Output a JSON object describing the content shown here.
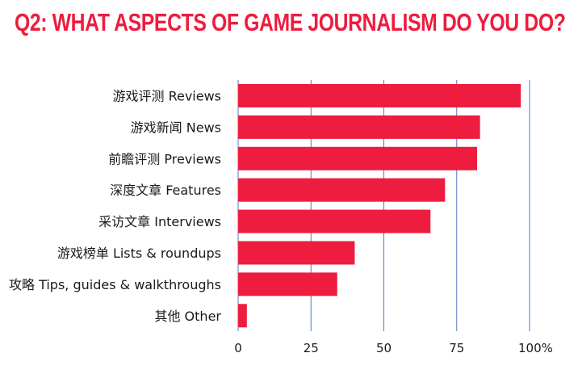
{
  "title": "Q2:  WHAT ASPECTS OF GAME JOURNALISM DO YOU DO?",
  "colors": {
    "title": "#ee1c3e",
    "bar": "#ee1c3e",
    "grid": "#4a7fbf"
  },
  "chart_data": {
    "type": "bar",
    "orientation": "horizontal",
    "categories": [
      "游戏评测  Reviews",
      "游戏新闻 News",
      "前瞻评测 Previews",
      "深度文章 Features",
      "采访文章  Interviews",
      "游戏榜单 Lists & roundups",
      "攻略 Tips, guides & walkthroughs",
      "其他   Other"
    ],
    "values": [
      97,
      83,
      82,
      71,
      66,
      40,
      34,
      3
    ],
    "xlim": [
      0,
      100
    ],
    "x_ticks": [
      0,
      25,
      50,
      75,
      100
    ],
    "x_tick_labels": [
      "0",
      "25",
      "50",
      "75",
      "100%"
    ],
    "grid": true,
    "legend": "none"
  }
}
